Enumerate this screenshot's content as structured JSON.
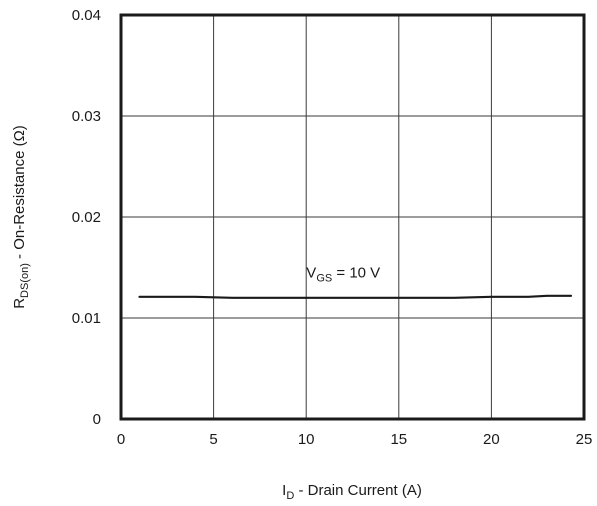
{
  "chart_data": {
    "type": "line",
    "x_axis": {
      "label_main": "I",
      "label_sub": "D",
      "label_rest": " - Drain Current (A)",
      "range": [
        0,
        25
      ],
      "ticks": [
        0,
        5,
        10,
        15,
        20,
        25
      ],
      "tick_labels": [
        "0",
        "5",
        "10",
        "15",
        "20",
        "25"
      ]
    },
    "y_axis": {
      "label_main": "R",
      "label_sub": "DS(on)",
      "label_rest": " - On-Resistance (Ω)",
      "range": [
        0,
        0.04
      ],
      "ticks": [
        0,
        0.01,
        0.02,
        0.03,
        0.04
      ],
      "tick_labels": [
        "0",
        "0.01",
        "0.02",
        "0.03",
        "0.04"
      ]
    },
    "grid": true,
    "series": [
      {
        "points": [
          [
            1,
            0.0121
          ],
          [
            2,
            0.0121
          ],
          [
            3,
            0.0121
          ],
          [
            4,
            0.0121
          ],
          [
            5,
            0.01205
          ],
          [
            6,
            0.012
          ],
          [
            8,
            0.012
          ],
          [
            10,
            0.012
          ],
          [
            12,
            0.012
          ],
          [
            14,
            0.012
          ],
          [
            15,
            0.012
          ],
          [
            16,
            0.012
          ],
          [
            18,
            0.012
          ],
          [
            20,
            0.0121
          ],
          [
            22,
            0.0121
          ],
          [
            23,
            0.0122
          ],
          [
            24.3,
            0.0122
          ]
        ],
        "color": "#1a1a1a"
      }
    ],
    "annotations": [
      {
        "main": "V",
        "sub": "GS",
        "rest": " = 10 V",
        "x": 12,
        "y": 0.014
      }
    ]
  }
}
